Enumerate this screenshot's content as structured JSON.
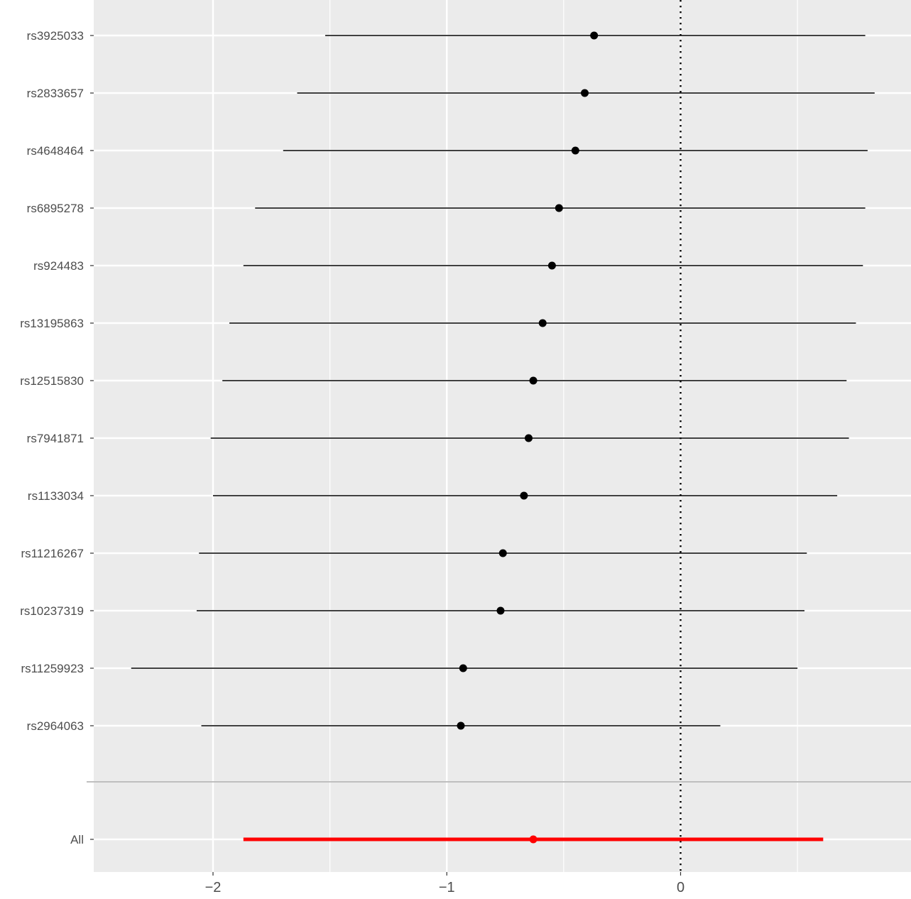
{
  "chart_data": {
    "type": "forest",
    "xticks": [
      -2,
      -1,
      0
    ],
    "xtick_labels": [
      "−2",
      "−1",
      "0"
    ],
    "xlim": [
      -2.5,
      0.9
    ],
    "reference_line_x": 0,
    "grid": true,
    "colors": {
      "panel_background": "#ebebeb",
      "gridline": "#ffffff",
      "snp_estimate": "#000000",
      "summary_estimate": "#ff0000",
      "separator": "#bfbfbf"
    },
    "snps": [
      {
        "label": "rs3925033",
        "estimate": -0.37,
        "ci": [
          -1.52,
          0.79
        ]
      },
      {
        "label": "rs2833657",
        "estimate": -0.41,
        "ci": [
          -1.64,
          0.83
        ]
      },
      {
        "label": "rs4648464",
        "estimate": -0.45,
        "ci": [
          -1.7,
          0.8
        ]
      },
      {
        "label": "rs6895278",
        "estimate": -0.52,
        "ci": [
          -1.82,
          0.79
        ]
      },
      {
        "label": "rs924483",
        "estimate": -0.55,
        "ci": [
          -1.87,
          0.78
        ]
      },
      {
        "label": "rs13195863",
        "estimate": -0.59,
        "ci": [
          -1.93,
          0.75
        ]
      },
      {
        "label": "rs12515830",
        "estimate": -0.63,
        "ci": [
          -1.96,
          0.71
        ]
      },
      {
        "label": "rs7941871",
        "estimate": -0.65,
        "ci": [
          -2.01,
          0.72
        ]
      },
      {
        "label": "rs1133034",
        "estimate": -0.67,
        "ci": [
          -2.0,
          0.67
        ]
      },
      {
        "label": "rs11216267",
        "estimate": -0.76,
        "ci": [
          -2.06,
          0.54
        ]
      },
      {
        "label": "rs10237319",
        "estimate": -0.77,
        "ci": [
          -2.07,
          0.53
        ]
      },
      {
        "label": "rs11259923",
        "estimate": -0.93,
        "ci": [
          -2.35,
          0.5
        ]
      },
      {
        "label": "rs2964063",
        "estimate": -0.94,
        "ci": [
          -2.05,
          0.17
        ]
      }
    ],
    "summary": {
      "label": "All",
      "estimate": -0.63,
      "ci": [
        -1.87,
        0.61
      ]
    }
  }
}
